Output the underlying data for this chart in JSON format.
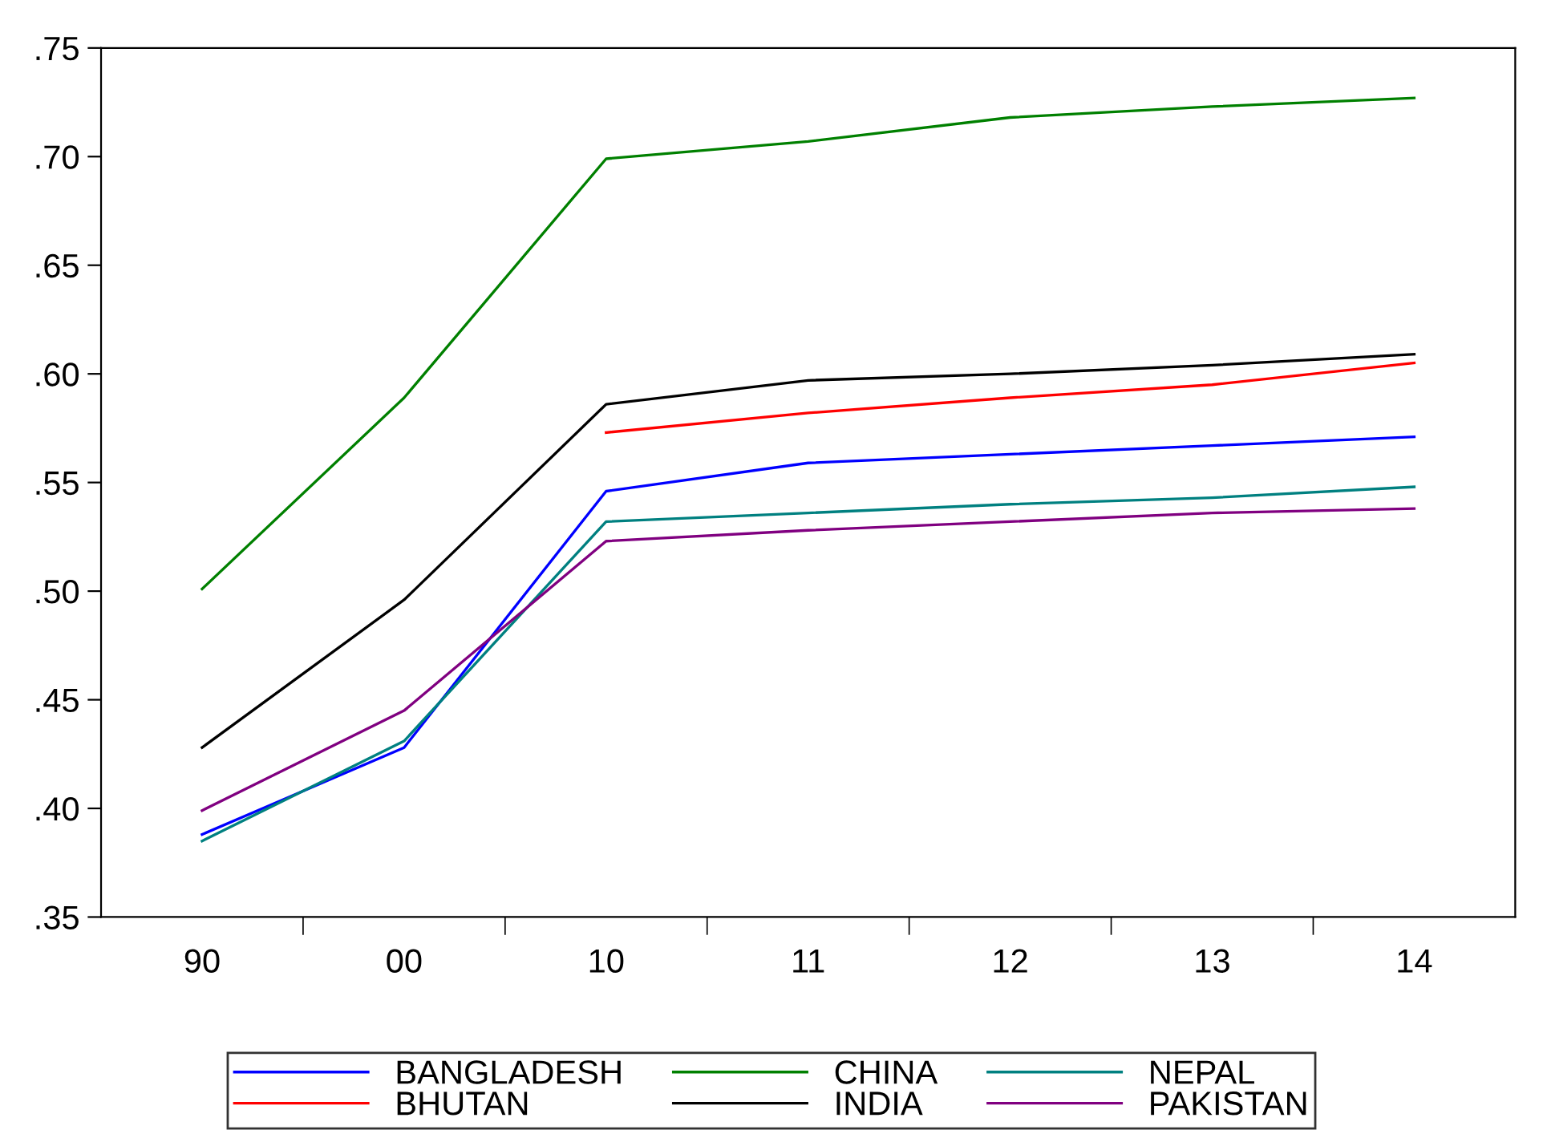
{
  "chart_data": {
    "type": "line",
    "categories": [
      "90",
      "00",
      "10",
      "11",
      "12",
      "13",
      "14"
    ],
    "series": [
      {
        "name": "BANGLADESH",
        "color": "#0000ff",
        "values": [
          0.388,
          0.428,
          0.546,
          0.559,
          0.563,
          0.567,
          0.571
        ]
      },
      {
        "name": "BHUTAN",
        "color": "#ff0000",
        "values": [
          null,
          null,
          0.573,
          0.582,
          0.589,
          0.595,
          0.605
        ]
      },
      {
        "name": "CHINA",
        "color": "#008000",
        "values": [
          0.501,
          0.589,
          0.699,
          0.707,
          0.718,
          0.723,
          0.727
        ]
      },
      {
        "name": "INDIA",
        "color": "#000000",
        "values": [
          0.428,
          0.496,
          0.586,
          0.597,
          0.6,
          0.604,
          0.609
        ]
      },
      {
        "name": "NEPAL",
        "color": "#008080",
        "values": [
          0.385,
          0.431,
          0.532,
          0.536,
          0.54,
          0.543,
          0.548
        ]
      },
      {
        "name": "PAKISTAN",
        "color": "#800080",
        "values": [
          0.399,
          0.445,
          0.523,
          0.528,
          0.532,
          0.536,
          0.538
        ]
      }
    ],
    "ylim": [
      0.35,
      0.75
    ],
    "yticks": [
      {
        "value": 0.35,
        "label": ".35"
      },
      {
        "value": 0.4,
        "label": ".40"
      },
      {
        "value": 0.45,
        "label": ".45"
      },
      {
        "value": 0.5,
        "label": ".50"
      },
      {
        "value": 0.55,
        "label": ".55"
      },
      {
        "value": 0.6,
        "label": ".60"
      },
      {
        "value": 0.65,
        "label": ".65"
      },
      {
        "value": 0.7,
        "label": ".70"
      },
      {
        "value": 0.75,
        "label": ".75"
      }
    ],
    "grid": false,
    "legend": "bottom",
    "marker": "none",
    "line_style": "solid"
  }
}
